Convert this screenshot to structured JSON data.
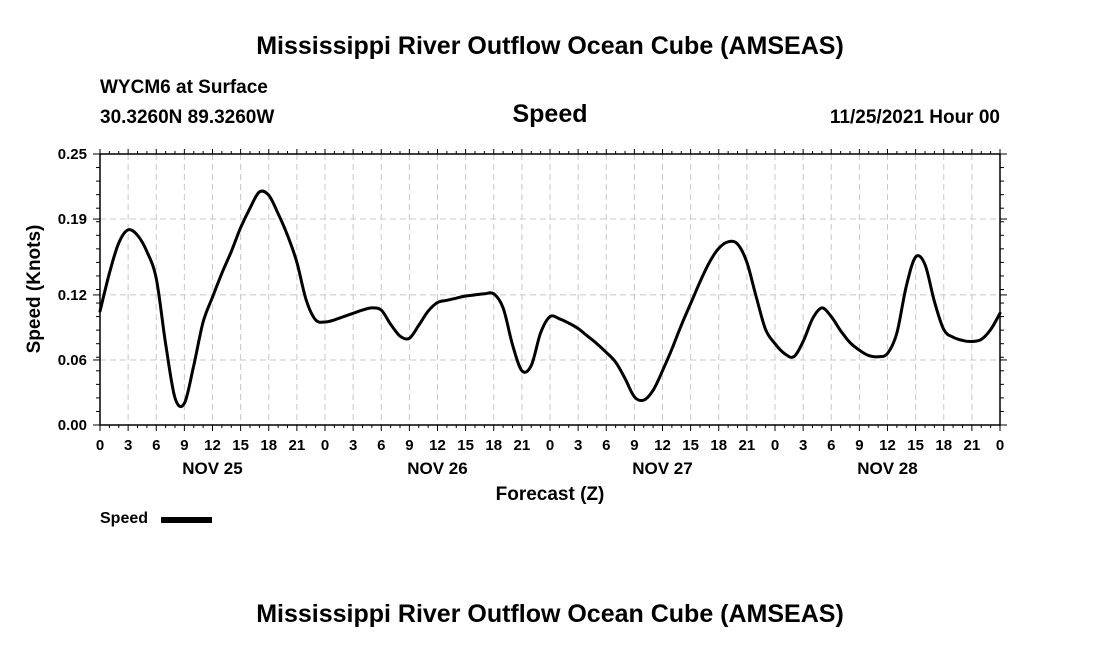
{
  "header": {
    "title_top": "Mississippi River Outflow Ocean Cube (AMSEAS)",
    "station": "WYCM6 at Surface",
    "coords": "30.3260N  89.3260W",
    "variable": "Speed",
    "datetime": "11/25/2021 Hour 00"
  },
  "footer": {
    "title_bottom": "Mississippi River Outflow Ocean Cube (AMSEAS)"
  },
  "legend": {
    "label": "Speed",
    "color": "#000000"
  },
  "chart_data": {
    "type": "line",
    "title": "Speed",
    "xlabel": "Forecast (Z)",
    "ylabel": "Speed (Knots)",
    "xlim": [
      0,
      96
    ],
    "ylim": [
      0,
      0.25
    ],
    "grid": true,
    "y_ticks": [
      {
        "value": 0,
        "label": "0.00"
      },
      {
        "value": 0.06,
        "label": "0.06"
      },
      {
        "value": 0.12,
        "label": "0.12"
      },
      {
        "value": 0.19,
        "label": "0.19"
      },
      {
        "value": 0.25,
        "label": "0.25"
      }
    ],
    "x_ticks": [
      {
        "hour": 0,
        "label": "0"
      },
      {
        "hour": 3,
        "label": "3"
      },
      {
        "hour": 6,
        "label": "6"
      },
      {
        "hour": 9,
        "label": "9"
      },
      {
        "hour": 12,
        "label": "12"
      },
      {
        "hour": 15,
        "label": "15"
      },
      {
        "hour": 18,
        "label": "18"
      },
      {
        "hour": 21,
        "label": "21"
      },
      {
        "hour": 24,
        "label": "0"
      },
      {
        "hour": 27,
        "label": "3"
      },
      {
        "hour": 30,
        "label": "6"
      },
      {
        "hour": 33,
        "label": "9"
      },
      {
        "hour": 36,
        "label": "12"
      },
      {
        "hour": 39,
        "label": "15"
      },
      {
        "hour": 42,
        "label": "18"
      },
      {
        "hour": 45,
        "label": "21"
      },
      {
        "hour": 48,
        "label": "0"
      },
      {
        "hour": 51,
        "label": "3"
      },
      {
        "hour": 54,
        "label": "6"
      },
      {
        "hour": 57,
        "label": "9"
      },
      {
        "hour": 60,
        "label": "12"
      },
      {
        "hour": 63,
        "label": "15"
      },
      {
        "hour": 66,
        "label": "18"
      },
      {
        "hour": 69,
        "label": "21"
      },
      {
        "hour": 72,
        "label": "0"
      },
      {
        "hour": 75,
        "label": "3"
      },
      {
        "hour": 78,
        "label": "6"
      },
      {
        "hour": 81,
        "label": "9"
      },
      {
        "hour": 84,
        "label": "12"
      },
      {
        "hour": 87,
        "label": "15"
      },
      {
        "hour": 90,
        "label": "18"
      },
      {
        "hour": 93,
        "label": "21"
      },
      {
        "hour": 96,
        "label": "0"
      }
    ],
    "day_labels": [
      {
        "hour": 12,
        "label": "NOV 25"
      },
      {
        "hour": 36,
        "label": "NOV 26"
      },
      {
        "hour": 60,
        "label": "NOV 27"
      },
      {
        "hour": 84,
        "label": "NOV 28"
      }
    ],
    "series": [
      {
        "name": "Speed",
        "x": [
          0,
          1,
          2,
          3,
          4,
          5,
          6,
          7,
          8,
          9,
          10,
          11,
          12,
          13,
          14,
          15,
          16,
          17,
          18,
          19,
          20,
          21,
          22,
          23,
          24,
          25,
          26,
          27,
          28,
          29,
          30,
          31,
          32,
          33,
          34,
          35,
          36,
          37,
          38,
          39,
          40,
          41,
          42,
          43,
          44,
          45,
          46,
          47,
          48,
          49,
          50,
          51,
          52,
          53,
          54,
          55,
          56,
          57,
          58,
          59,
          60,
          61,
          62,
          63,
          64,
          65,
          66,
          67,
          68,
          69,
          70,
          71,
          72,
          73,
          74,
          75,
          76,
          77,
          78,
          79,
          80,
          81,
          82,
          83,
          84,
          85,
          86,
          87,
          88,
          89,
          90,
          91,
          92,
          93,
          94,
          95,
          96
        ],
        "values": [
          0.105,
          0.14,
          0.168,
          0.18,
          0.175,
          0.16,
          0.135,
          0.075,
          0.025,
          0.02,
          0.055,
          0.095,
          0.118,
          0.14,
          0.16,
          0.182,
          0.2,
          0.215,
          0.212,
          0.195,
          0.175,
          0.15,
          0.115,
          0.097,
          0.095,
          0.097,
          0.1,
          0.103,
          0.106,
          0.108,
          0.106,
          0.093,
          0.082,
          0.08,
          0.092,
          0.105,
          0.113,
          0.115,
          0.117,
          0.119,
          0.12,
          0.121,
          0.121,
          0.108,
          0.074,
          0.05,
          0.055,
          0.085,
          0.1,
          0.098,
          0.094,
          0.089,
          0.082,
          0.075,
          0.067,
          0.058,
          0.043,
          0.026,
          0.023,
          0.032,
          0.05,
          0.07,
          0.092,
          0.112,
          0.132,
          0.15,
          0.163,
          0.169,
          0.167,
          0.15,
          0.118,
          0.088,
          0.075,
          0.066,
          0.063,
          0.077,
          0.098,
          0.108,
          0.1,
          0.087,
          0.076,
          0.069,
          0.064,
          0.063,
          0.066,
          0.085,
          0.128,
          0.155,
          0.148,
          0.114,
          0.088,
          0.081,
          0.078,
          0.077,
          0.079,
          0.088,
          0.103
        ]
      }
    ]
  }
}
